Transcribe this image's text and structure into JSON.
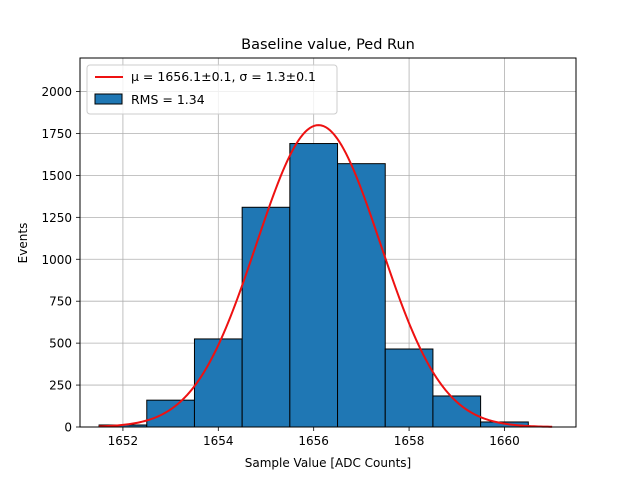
{
  "chart_data": {
    "type": "bar",
    "title": "Baseline value, Ped Run",
    "xlabel": "Sample Value [ADC Counts]",
    "ylabel": "Events",
    "xlim": [
      1651.1,
      1661.5
    ],
    "ylim": [
      0,
      2200
    ],
    "xticks": [
      1652,
      1654,
      1656,
      1658,
      1660
    ],
    "yticks": [
      0,
      250,
      500,
      750,
      1000,
      1250,
      1500,
      1750,
      2000
    ],
    "grid": true,
    "legend_position": "top-left",
    "histogram": {
      "name": "RMS = 1.34",
      "color": "#1f77b4",
      "bin_edges": [
        1651.5,
        1652.5,
        1653.5,
        1654.5,
        1655.5,
        1656.5,
        1657.5,
        1658.5,
        1659.5,
        1660.5
      ],
      "values": [
        12,
        160,
        525,
        1310,
        1690,
        1570,
        465,
        185,
        30
      ]
    },
    "fit": {
      "name": "μ = 1656.1±0.1, σ = 1.3±0.1",
      "color": "#ee1111",
      "mean": 1656.1,
      "sigma": 1.3,
      "amplitude": 1800,
      "range": [
        1651.5,
        1661.0
      ]
    }
  }
}
